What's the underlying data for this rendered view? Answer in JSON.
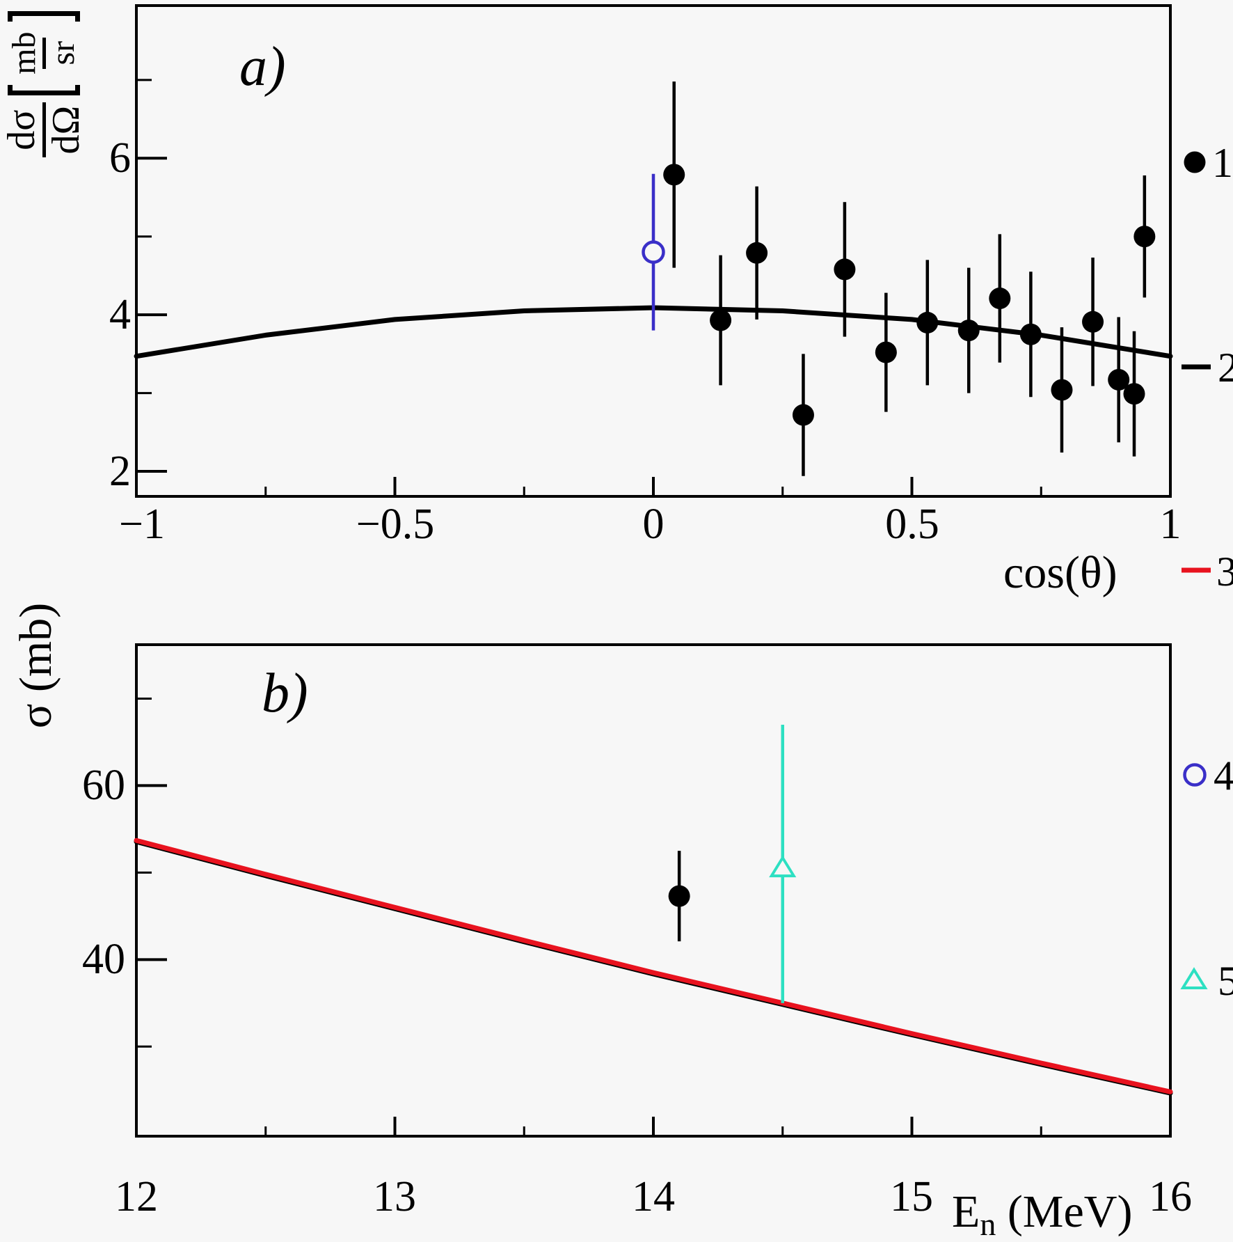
{
  "labels": {
    "panel_a_letter": "a)",
    "panel_b_letter": "b)",
    "a_x_title": "cos(θ)",
    "a_y_num1": "dσ",
    "a_y_den1": "dΩ",
    "a_y_num2": "mb",
    "a_y_den2": "sr",
    "b_y_title": "σ (mb)",
    "b_x_main": "E",
    "b_x_sub": "n",
    "b_x_rest": " (MeV)",
    "a_x_ticks": [
      "−1",
      "−0.5",
      "0",
      "0.5",
      "1"
    ],
    "a_y_ticks": [
      "6",
      "4",
      "2"
    ],
    "b_x_ticks": [
      "12",
      "13",
      "14",
      "15",
      "16"
    ],
    "b_y_ticks": [
      "60",
      "40"
    ]
  },
  "legend": {
    "items": [
      {
        "label": "1",
        "marker": "filled-circle",
        "color": "#000000"
      },
      {
        "label": "2",
        "marker": "line",
        "color": "#000000"
      },
      {
        "label": "3",
        "marker": "line",
        "color": "#e8131f"
      },
      {
        "label": "4",
        "marker": "open-circle",
        "color": "#3a2fc8"
      },
      {
        "label": "5",
        "marker": "open-triangle",
        "color": "#2de0c2"
      }
    ]
  },
  "chart_data": [
    {
      "id": "a",
      "type": "scatter",
      "title": "a)",
      "xlabel": "cos(θ)",
      "ylabel": "dσ/dΩ [mb/sr]",
      "xlim": [
        -1,
        1
      ],
      "ylim": [
        1.68,
        7.95
      ],
      "grid": false,
      "x_major_ticks": [
        -1,
        -0.5,
        0,
        0.5,
        1
      ],
      "x_minor_ticks": [
        -0.75,
        -0.25,
        0.25,
        0.75
      ],
      "y_major_ticks": [
        2,
        4,
        6
      ],
      "y_minor_ticks": [
        3,
        5,
        7
      ],
      "series": [
        {
          "name": "2",
          "type": "curve",
          "color": "#000000",
          "x": [
            -1,
            -0.75,
            -0.5,
            -0.25,
            0,
            0.25,
            0.5,
            0.75,
            1
          ],
          "y": [
            3.47,
            3.74,
            3.94,
            4.05,
            4.09,
            4.05,
            3.94,
            3.74,
            3.47
          ]
        },
        {
          "name": "1",
          "type": "points",
          "marker": "filled-circle",
          "color": "#000000",
          "points": [
            [
              0.04,
              5.79,
              1.19
            ],
            [
              0.13,
              3.93,
              0.83
            ],
            [
              0.2,
              4.79,
              0.85
            ],
            [
              0.29,
              2.72,
              0.78
            ],
            [
              0.37,
              4.58,
              0.86
            ],
            [
              0.45,
              3.52,
              0.76
            ],
            [
              0.53,
              3.9,
              0.8
            ],
            [
              0.61,
              3.8,
              0.8
            ],
            [
              0.67,
              4.21,
              0.82
            ],
            [
              0.73,
              3.75,
              0.8
            ],
            [
              0.79,
              3.04,
              0.8
            ],
            [
              0.85,
              3.91,
              0.82
            ],
            [
              0.9,
              3.17,
              0.8
            ],
            [
              0.93,
              2.99,
              0.8
            ],
            [
              0.95,
              5.0,
              0.78
            ]
          ]
        },
        {
          "name": "4",
          "type": "points",
          "marker": "open-circle",
          "color": "#3a2fc8",
          "points": [
            [
              0.0,
              4.8,
              1.0
            ]
          ]
        }
      ]
    },
    {
      "id": "b",
      "type": "scatter",
      "title": "b)",
      "xlabel": "En (MeV)",
      "ylabel": "σ (mb)",
      "xlim": [
        12,
        16
      ],
      "ylim": [
        19.7,
        76.2
      ],
      "grid": false,
      "x_major_ticks": [
        12,
        13,
        14,
        15,
        16
      ],
      "x_minor_ticks": [
        12.5,
        13.5,
        14.5,
        15.5
      ],
      "y_major_ticks": [
        40,
        60
      ],
      "y_minor_ticks": [
        30,
        50,
        70
      ],
      "series": [
        {
          "name": "2",
          "type": "curve",
          "color": "#000000",
          "x": [
            12,
            12.5,
            13,
            13.5,
            14,
            14.5,
            15,
            15.5,
            16
          ],
          "y": [
            53.55,
            49.65,
            45.85,
            42.05,
            38.35,
            34.85,
            31.35,
            27.95,
            24.65
          ]
        },
        {
          "name": "3",
          "type": "curve",
          "color": "#e8131f",
          "x": [
            12,
            12.5,
            13,
            13.5,
            14,
            14.5,
            15,
            15.5,
            16
          ],
          "y": [
            53.7,
            49.8,
            46.0,
            42.2,
            38.5,
            35.0,
            31.5,
            28.1,
            24.8
          ]
        },
        {
          "name": "1",
          "type": "points",
          "marker": "filled-circle",
          "color": "#000000",
          "points": [
            [
              14.1,
              47.3,
              5.2
            ]
          ]
        },
        {
          "name": "5",
          "type": "points",
          "marker": "open-triangle",
          "color": "#2de0c2",
          "points": [
            [
              14.5,
              50.5,
              16.5,
              15.5
            ]
          ]
        }
      ]
    }
  ]
}
